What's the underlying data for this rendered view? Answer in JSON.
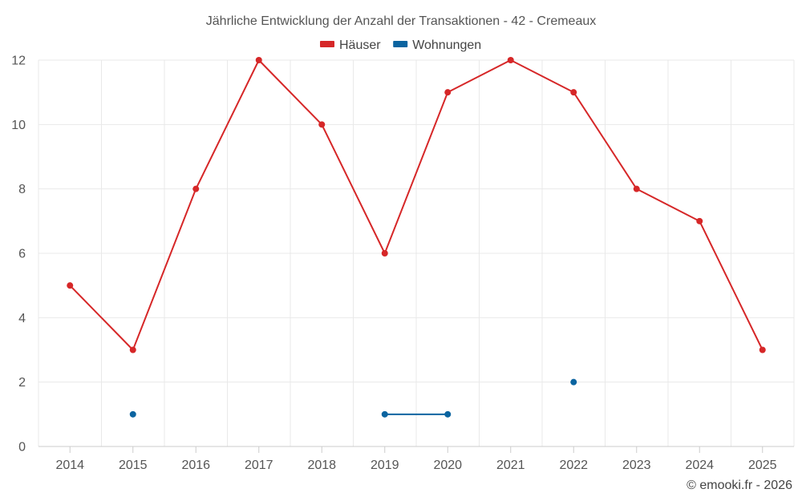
{
  "chart_data": {
    "type": "line",
    "title": "Jährliche Entwicklung der Anzahl der Transaktionen - 42 - Cremeaux",
    "categories": [
      "2014",
      "2015",
      "2016",
      "2017",
      "2018",
      "2019",
      "2020",
      "2021",
      "2022",
      "2023",
      "2024",
      "2025"
    ],
    "series": [
      {
        "name": "Häuser",
        "color": "#d62728",
        "values": [
          5,
          3,
          8,
          12,
          10,
          6,
          11,
          12,
          11,
          8,
          7,
          3
        ]
      },
      {
        "name": "Wohnungen",
        "color": "#0b64a0",
        "values": [
          null,
          1,
          null,
          null,
          null,
          1,
          1,
          null,
          2,
          null,
          null,
          null
        ]
      }
    ],
    "yticks": [
      0,
      2,
      4,
      6,
      8,
      10,
      12
    ],
    "ylim": [
      0,
      12
    ],
    "xlabel": "",
    "ylabel": "",
    "grid": true,
    "legend_position": "top-center"
  },
  "credit": "© emooki.fr - 2026"
}
